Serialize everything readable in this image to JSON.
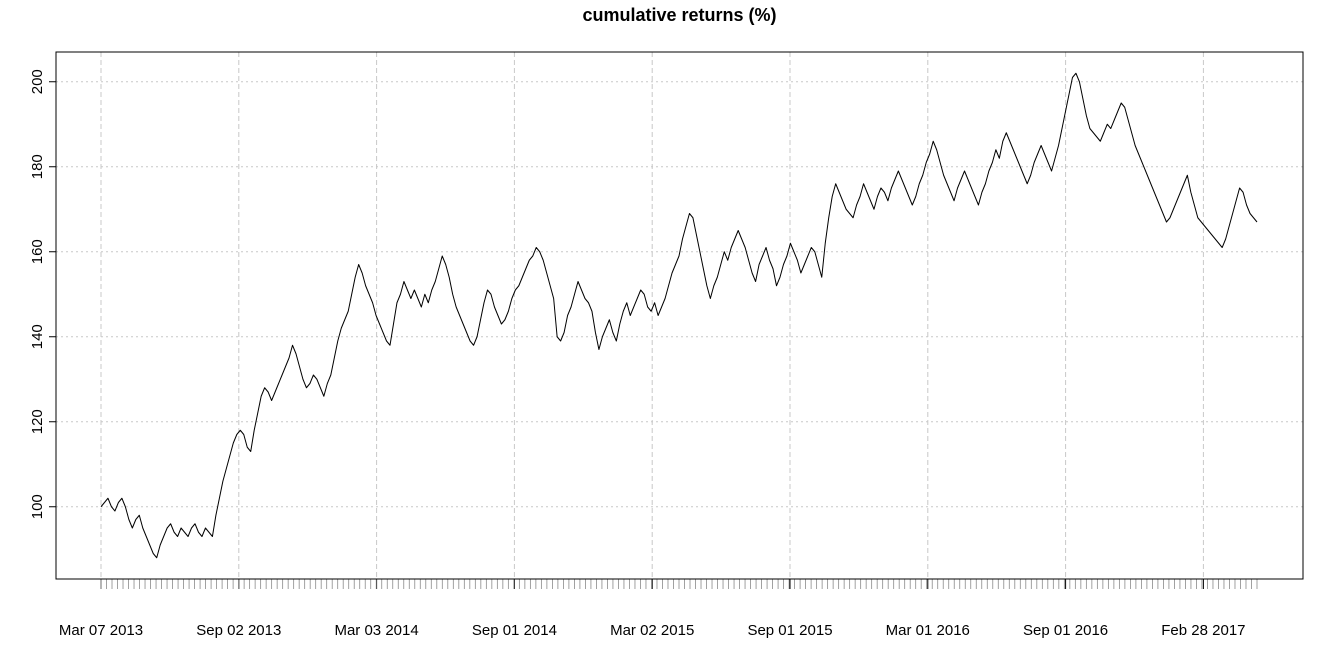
{
  "chart_data": {
    "type": "line",
    "title": "cumulative returns (%)",
    "xlabel": "",
    "ylabel": "",
    "ylim": [
      83,
      207
    ],
    "yticks": [
      100,
      120,
      140,
      160,
      180,
      200
    ],
    "xticks": [
      "Mar 07 2013",
      "Sep 02 2013",
      "Mar 03 2014",
      "Sep 01 2014",
      "Mar 02 2015",
      "Sep 01 2015",
      "Mar 01 2016",
      "Sep 01 2016",
      "Feb 28 2017"
    ],
    "grid": true,
    "series": [
      {
        "values": [
          100,
          101,
          102,
          100,
          99,
          101,
          102,
          100,
          97,
          95,
          97,
          98,
          95,
          93,
          91,
          89,
          88,
          91,
          93,
          95,
          96,
          94,
          93,
          95,
          94,
          93,
          95,
          96,
          94,
          93,
          95,
          94,
          93,
          98,
          102,
          106,
          109,
          112,
          115,
          117,
          118,
          117,
          114,
          113,
          118,
          122,
          126,
          128,
          127,
          125,
          127,
          129,
          131,
          133,
          135,
          138,
          136,
          133,
          130,
          128,
          129,
          131,
          130,
          128,
          126,
          129,
          131,
          135,
          139,
          142,
          144,
          146,
          150,
          154,
          157,
          155,
          152,
          150,
          148,
          145,
          143,
          141,
          139,
          138,
          143,
          148,
          150,
          153,
          151,
          149,
          151,
          149,
          147,
          150,
          148,
          151,
          153,
          156,
          159,
          157,
          154,
          150,
          147,
          145,
          143,
          141,
          139,
          138,
          140,
          144,
          148,
          151,
          150,
          147,
          145,
          143,
          144,
          146,
          149,
          151,
          152,
          154,
          156,
          158,
          159,
          161,
          160,
          158,
          155,
          152,
          149,
          140,
          139,
          141,
          145,
          147,
          150,
          153,
          151,
          149,
          148,
          146,
          141,
          137,
          140,
          142,
          144,
          141,
          139,
          143,
          146,
          148,
          145,
          147,
          149,
          151,
          150,
          147,
          146,
          148,
          145,
          147,
          149,
          152,
          155,
          157,
          159,
          163,
          166,
          169,
          168,
          164,
          160,
          156,
          152,
          149,
          152,
          154,
          157,
          160,
          158,
          161,
          163,
          165,
          163,
          161,
          158,
          155,
          153,
          157,
          159,
          161,
          158,
          156,
          152,
          154,
          157,
          159,
          162,
          160,
          158,
          155,
          157,
          159,
          161,
          160,
          157,
          154,
          162,
          168,
          173,
          176,
          174,
          172,
          170,
          169,
          168,
          171,
          173,
          176,
          174,
          172,
          170,
          173,
          175,
          174,
          172,
          175,
          177,
          179,
          177,
          175,
          173,
          171,
          173,
          176,
          178,
          181,
          183,
          186,
          184,
          181,
          178,
          176,
          174,
          172,
          175,
          177,
          179,
          177,
          175,
          173,
          171,
          174,
          176,
          179,
          181,
          184,
          182,
          186,
          188,
          186,
          184,
          182,
          180,
          178,
          176,
          178,
          181,
          183,
          185,
          183,
          181,
          179,
          182,
          185,
          189,
          193,
          197,
          201,
          202,
          200,
          196,
          192,
          189,
          188,
          187,
          186,
          188,
          190,
          189,
          191,
          193,
          195,
          194,
          191,
          188,
          185,
          183,
          181,
          179,
          177,
          175,
          173,
          171,
          169,
          167,
          168,
          170,
          172,
          174,
          176,
          178,
          174,
          171,
          168,
          167,
          166,
          165,
          164,
          163,
          162,
          161,
          163,
          166,
          169,
          172,
          175,
          174,
          171,
          169,
          168,
          167
        ]
      }
    ]
  }
}
